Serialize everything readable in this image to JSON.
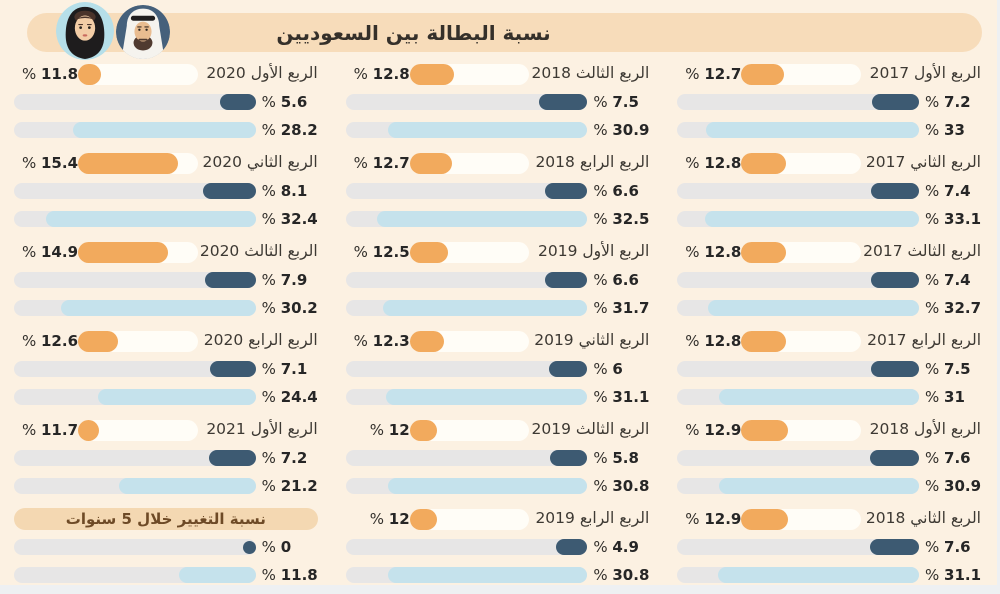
{
  "header": {
    "title": "نسبة البطالة بين السعوديين",
    "avatars": [
      "woman-avatar",
      "man-avatar"
    ]
  },
  "chart_data": {
    "type": "bar",
    "direction": "rtl",
    "title": "نسبة البطالة بين السعوديين",
    "unit": "%",
    "series_names": [
      "total",
      "male",
      "female"
    ],
    "colors": {
      "total": "#f2aa5d",
      "male": "#3d5a72",
      "female": "#c5e2ec",
      "track": "#e7e6e6",
      "row_strip": "#fffdf7",
      "banner": "#f7dcba",
      "background": "#fcf1e2"
    },
    "columns": [
      {
        "groups": [
          {
            "label": "الربع الأول 2017",
            "total": 12.7,
            "male": 7.2,
            "female": 33
          },
          {
            "label": "الربع الثاني 2017",
            "total": 12.8,
            "male": 7.4,
            "female": 33.1
          },
          {
            "label": "الربع الثالث 2017",
            "total": 12.8,
            "male": 7.4,
            "female": 32.7
          },
          {
            "label": "الربع الرابع 2017",
            "total": 12.8,
            "male": 7.5,
            "female": 31
          },
          {
            "label": "الربع الأول 2018",
            "total": 12.9,
            "male": 7.6,
            "female": 30.9
          },
          {
            "label": "الربع الثاني 2018",
            "total": 12.9,
            "male": 7.6,
            "female": 31.1
          }
        ]
      },
      {
        "groups": [
          {
            "label": "الربع الثالث 2018",
            "total": 12.8,
            "male": 7.5,
            "female": 30.9
          },
          {
            "label": "الربع الرابع 2018",
            "total": 12.7,
            "male": 6.6,
            "female": 32.5
          },
          {
            "label": "الربع الأول 2019",
            "total": 12.5,
            "male": 6.6,
            "female": 31.7
          },
          {
            "label": "الربع الثاني 2019",
            "total": 12.3,
            "male": 6,
            "female": 31.1
          },
          {
            "label": "الربع الثالث 2019",
            "total": 12,
            "male": 5.8,
            "female": 30.8
          },
          {
            "label": "الربع الرابع 2019",
            "total": 12,
            "male": 4.9,
            "female": 30.8
          }
        ]
      },
      {
        "groups": [
          {
            "label": "الربع الأول 2020",
            "total": 11.8,
            "male": 5.6,
            "female": 28.2
          },
          {
            "label": "الربع الثاني 2020",
            "total": 15.4,
            "male": 8.1,
            "female": 32.4
          },
          {
            "label": "الربع الثالث 2020",
            "total": 14.9,
            "male": 7.9,
            "female": 30.2
          },
          {
            "label": "الربع الرابع 2020",
            "total": 12.6,
            "male": 7.1,
            "female": 24.4
          },
          {
            "label": "الربع الأول 2021",
            "total": 11.7,
            "male": 7.2,
            "female": 21.2
          }
        ],
        "change_section": {
          "label": "نسبة التغيير خلال 5 سنوات",
          "male": 0,
          "female": 11.8
        }
      }
    ],
    "axis_max_track": 37.4
  }
}
